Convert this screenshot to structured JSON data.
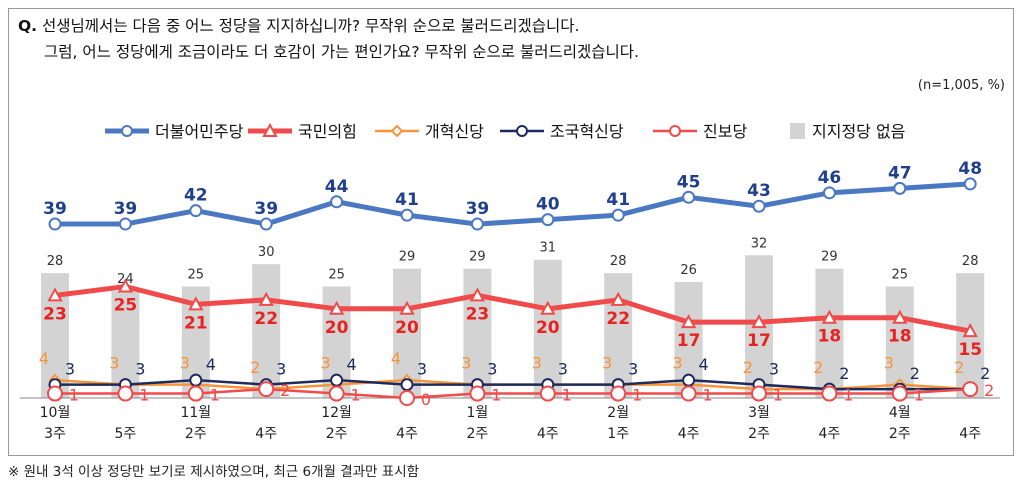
{
  "question": {
    "prefix": "Q.",
    "line1": "선생님께서는 다음 중 어느 정당을 지지하십니까? 무작위 순으로 불러드리겠습니다.",
    "line2": "그럼, 어느 정당에게 조금이라도 더 호감이 가는 편인가요? 무작위 순으로 불러드리겠습니다."
  },
  "note": "(n=1,005,  %)",
  "footnote": "※ 원내 3석 이상 정당만 보기로 제시하였으며, 최근 6개월 결과만 표시함",
  "chart_data": {
    "type": "line",
    "categories": [
      [
        "10월",
        "3주"
      ],
      [
        "",
        "5주"
      ],
      [
        "11월",
        "2주"
      ],
      [
        "",
        "4주"
      ],
      [
        "12월",
        "2주"
      ],
      [
        "",
        "4주"
      ],
      [
        "1월",
        "2주"
      ],
      [
        "",
        "4주"
      ],
      [
        "2월",
        "1주"
      ],
      [
        "",
        "4주"
      ],
      [
        "3월",
        "2주"
      ],
      [
        "",
        "4주"
      ],
      [
        "4월",
        "2주"
      ],
      [
        "",
        "4주"
      ]
    ],
    "ylim": [
      0,
      50
    ],
    "grid": false,
    "legend_position": "top",
    "bar_series": {
      "name": "지지정당 없음",
      "color": "#d3d3d3",
      "values": [
        28,
        24,
        25,
        30,
        25,
        29,
        29,
        31,
        28,
        26,
        32,
        29,
        25,
        28
      ]
    },
    "series": [
      {
        "name": "더불어민주당",
        "color": "#4a78c2",
        "label_color": "#1f3f8f",
        "marker": "circle",
        "values": [
          39,
          39,
          42,
          39,
          44,
          41,
          39,
          40,
          41,
          45,
          43,
          46,
          47,
          48
        ]
      },
      {
        "name": "국민의힘",
        "color": "#f04a4a",
        "label_color": "#e8231f",
        "marker": "triangle",
        "values": [
          23,
          25,
          21,
          22,
          20,
          20,
          23,
          20,
          22,
          17,
          17,
          18,
          18,
          15
        ]
      },
      {
        "name": "개혁신당",
        "color": "#f7953a",
        "label_color": "#f7953a",
        "marker": "diamond",
        "values": [
          4,
          3,
          3,
          2,
          3,
          4,
          3,
          3,
          3,
          3,
          2,
          2,
          3,
          2
        ]
      },
      {
        "name": "조국혁신당",
        "color": "#1d2a5e",
        "label_color": "#1d2a5e",
        "marker": "circle",
        "values": [
          3,
          3,
          4,
          3,
          4,
          3,
          3,
          3,
          3,
          4,
          3,
          2,
          2,
          2
        ]
      },
      {
        "name": "진보당",
        "color": "#f04a4a",
        "label_color": "#f04a4a",
        "marker": "circle",
        "values": [
          1,
          1,
          1,
          2,
          1,
          0,
          1,
          1,
          1,
          1,
          1,
          1,
          1,
          2
        ]
      }
    ]
  }
}
